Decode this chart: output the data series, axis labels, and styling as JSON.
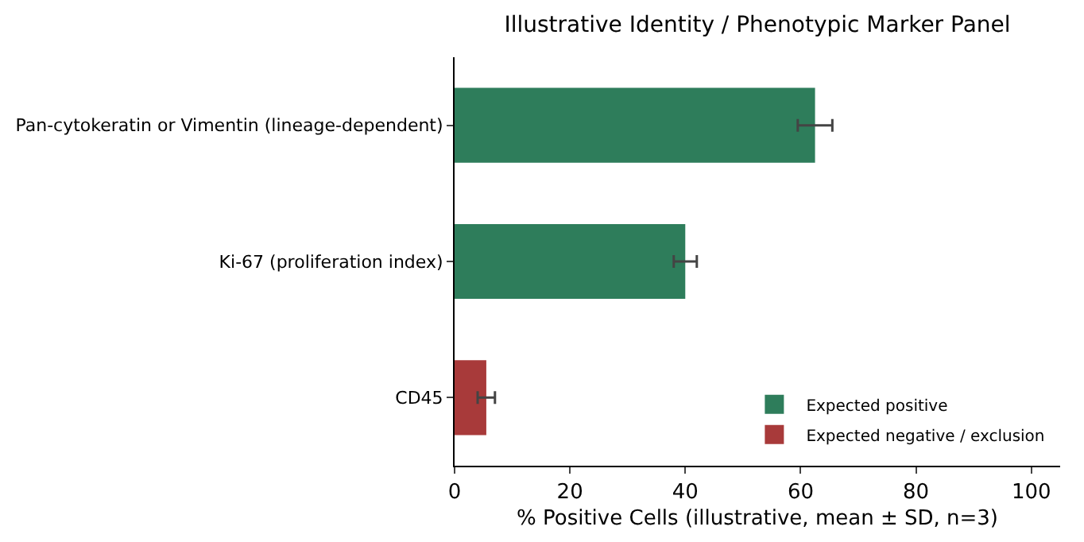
{
  "chart_data": {
    "type": "bar",
    "orientation": "horizontal",
    "title": "Illustrative Identity / Phenotypic Marker Panel",
    "xlabel": "% Positive Cells (illustrative, mean ± SD, n=3)",
    "categories": [
      "Pan-cytokeratin or Vimentin (lineage-dependent)",
      "Ki-67 (proliferation index)",
      "CD45"
    ],
    "series": [
      {
        "name": "Expected positive",
        "color": "#2e7d5b",
        "values": [
          62.5,
          40,
          null
        ],
        "errors": [
          3,
          2,
          null
        ]
      },
      {
        "name": "Expected negative / exclusion",
        "color": "#a83a3a",
        "values": [
          null,
          null,
          5.5
        ],
        "errors": [
          null,
          null,
          1.5
        ]
      }
    ],
    "xlim": [
      0,
      105
    ],
    "xticks": [
      0,
      20,
      40,
      60,
      80,
      100
    ],
    "legend": "bottom right"
  }
}
